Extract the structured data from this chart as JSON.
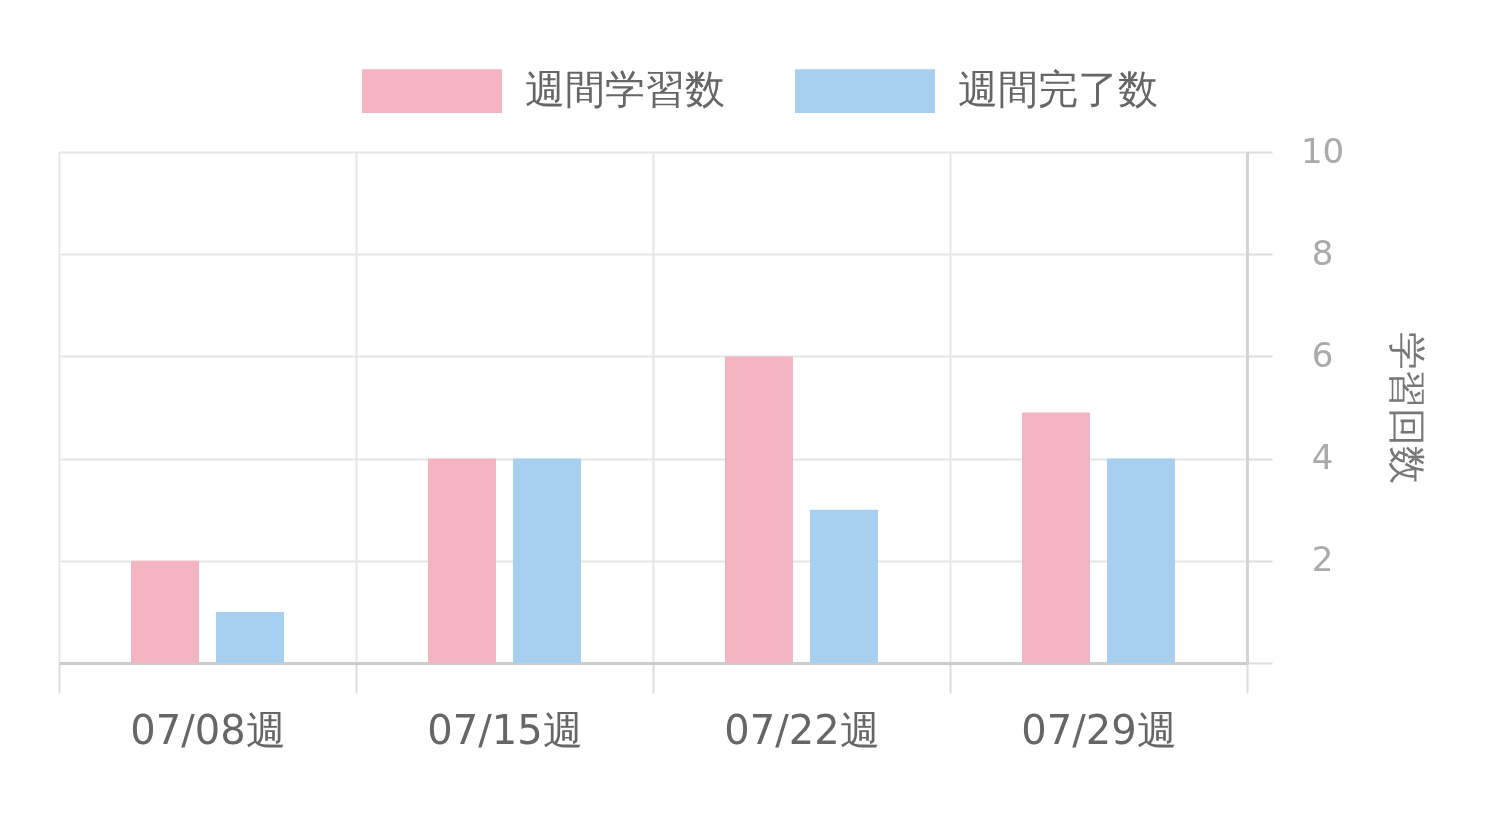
{
  "chart_data": {
    "type": "bar",
    "categories": [
      "07/08週",
      "07/15週",
      "07/22週",
      "07/29週"
    ],
    "series": [
      {
        "name": "週間学習数",
        "color": "#f5b4c2",
        "values": [
          2,
          4,
          6,
          4.9
        ]
      },
      {
        "name": "週間完了数",
        "color": "#a6cff0",
        "values": [
          1,
          4,
          3,
          4
        ]
      }
    ],
    "ylabel": "学習回数",
    "ylim": [
      0,
      10
    ],
    "yticks": [
      {
        "value": 0,
        "label": null
      },
      2,
      4,
      6,
      8,
      10
    ],
    "grid": true,
    "legend": "top"
  }
}
